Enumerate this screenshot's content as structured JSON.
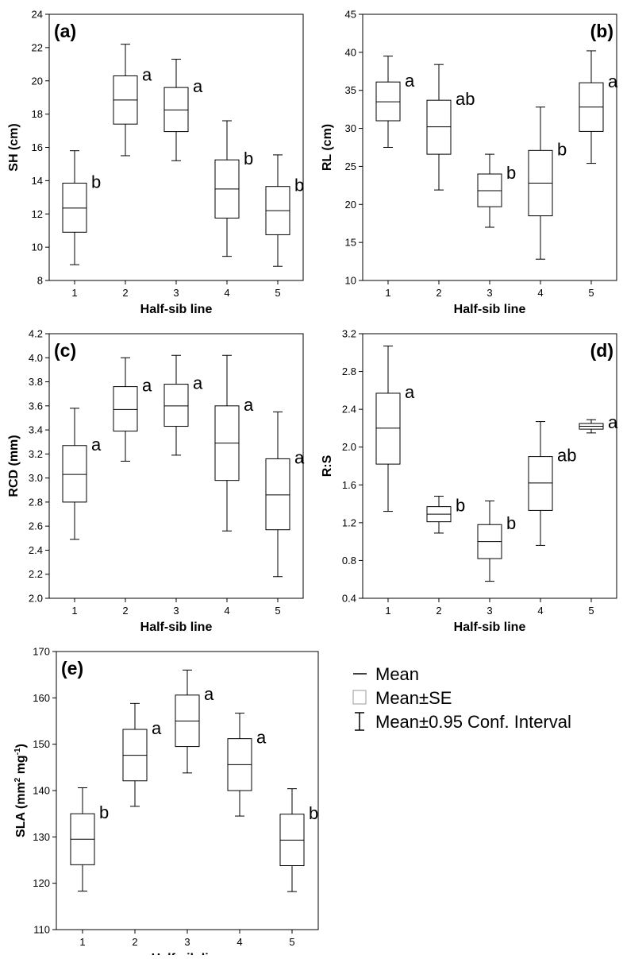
{
  "figure": {
    "legend": {
      "mean_label": "Mean",
      "se_label": "Mean±SE",
      "ci_label": "Mean±0.95 Conf. Interval"
    }
  },
  "chart_data": [
    {
      "type": "box",
      "panel_label": "(a)",
      "xlabel": "Half-sib line",
      "ylabel": "SH (cm)",
      "ylim": [
        8,
        24
      ],
      "yticks": [
        8,
        10,
        12,
        14,
        16,
        18,
        20,
        22,
        24
      ],
      "categories": [
        "1",
        "2",
        "3",
        "4",
        "5"
      ],
      "series": [
        {
          "mean": 12.35,
          "se_low": 10.9,
          "se_high": 13.85,
          "ci_low": 8.95,
          "ci_high": 15.8,
          "letter": "b"
        },
        {
          "mean": 18.85,
          "se_low": 17.4,
          "se_high": 20.3,
          "ci_low": 15.5,
          "ci_high": 22.2,
          "letter": "a"
        },
        {
          "mean": 18.25,
          "se_low": 16.95,
          "se_high": 19.6,
          "ci_low": 15.2,
          "ci_high": 21.3,
          "letter": "a"
        },
        {
          "mean": 13.5,
          "se_low": 11.75,
          "se_high": 15.25,
          "ci_low": 9.45,
          "ci_high": 17.6,
          "letter": "b"
        },
        {
          "mean": 12.2,
          "se_low": 10.75,
          "se_high": 13.65,
          "ci_low": 8.85,
          "ci_high": 15.55,
          "letter": "b"
        }
      ]
    },
    {
      "type": "box",
      "panel_label": "(b)",
      "xlabel": "Half-sib line",
      "ylabel": "RL (cm)",
      "ylim": [
        10,
        45
      ],
      "yticks": [
        10,
        15,
        20,
        25,
        30,
        35,
        40,
        45
      ],
      "categories": [
        "1",
        "2",
        "3",
        "4",
        "5"
      ],
      "series": [
        {
          "mean": 33.5,
          "se_low": 31.0,
          "se_high": 36.1,
          "ci_low": 27.5,
          "ci_high": 39.5,
          "letter": "a"
        },
        {
          "mean": 30.2,
          "se_low": 26.6,
          "se_high": 33.7,
          "ci_low": 21.9,
          "ci_high": 38.4,
          "letter": "ab"
        },
        {
          "mean": 21.8,
          "se_low": 19.7,
          "se_high": 24.0,
          "ci_low": 17.0,
          "ci_high": 26.6,
          "letter": "b"
        },
        {
          "mean": 22.8,
          "se_low": 18.5,
          "se_high": 27.1,
          "ci_low": 12.8,
          "ci_high": 32.8,
          "letter": "b"
        },
        {
          "mean": 32.8,
          "se_low": 29.6,
          "se_high": 36.0,
          "ci_low": 25.4,
          "ci_high": 40.2,
          "letter": "a"
        }
      ]
    },
    {
      "type": "box",
      "panel_label": "(c)",
      "xlabel": "Half-sib line",
      "ylabel": "RCD (mm)",
      "ylim": [
        2.0,
        4.2
      ],
      "yticks": [
        "2.0",
        "2.2",
        "2.4",
        "2.6",
        "2.8",
        "3.0",
        "3.2",
        "3.4",
        "3.6",
        "3.8",
        "4.0",
        "4.2"
      ],
      "categories": [
        "1",
        "2",
        "3",
        "4",
        "5"
      ],
      "series": [
        {
          "mean": 3.03,
          "se_low": 2.8,
          "se_high": 3.27,
          "ci_low": 2.49,
          "ci_high": 3.58,
          "letter": "a"
        },
        {
          "mean": 3.57,
          "se_low": 3.39,
          "se_high": 3.76,
          "ci_low": 3.14,
          "ci_high": 4.0,
          "letter": "a"
        },
        {
          "mean": 3.6,
          "se_low": 3.43,
          "se_high": 3.78,
          "ci_low": 3.19,
          "ci_high": 4.02,
          "letter": "a"
        },
        {
          "mean": 3.29,
          "se_low": 2.98,
          "se_high": 3.6,
          "ci_low": 2.56,
          "ci_high": 4.02,
          "letter": "a"
        },
        {
          "mean": 2.86,
          "se_low": 2.57,
          "se_high": 3.16,
          "ci_low": 2.18,
          "ci_high": 3.55,
          "letter": "a"
        }
      ]
    },
    {
      "type": "box",
      "panel_label": "(d)",
      "xlabel": "Half-sib line",
      "ylabel": "R:S",
      "ylim": [
        0.4,
        3.2
      ],
      "yticks": [
        "0.4",
        "0.8",
        "1.2",
        "1.6",
        "2.0",
        "2.4",
        "2.8",
        "3.2"
      ],
      "categories": [
        "1",
        "2",
        "3",
        "4",
        "5"
      ],
      "series": [
        {
          "mean": 2.2,
          "se_low": 1.82,
          "se_high": 2.57,
          "ci_low": 1.32,
          "ci_high": 3.07,
          "letter": "a"
        },
        {
          "mean": 1.29,
          "se_low": 1.21,
          "se_high": 1.37,
          "ci_low": 1.09,
          "ci_high": 1.48,
          "letter": "b"
        },
        {
          "mean": 1.0,
          "se_low": 0.82,
          "se_high": 1.18,
          "ci_low": 0.58,
          "ci_high": 1.43,
          "letter": "b"
        },
        {
          "mean": 1.62,
          "se_low": 1.33,
          "se_high": 1.9,
          "ci_low": 0.96,
          "ci_high": 2.27,
          "letter": "ab"
        },
        {
          "mean": 2.22,
          "se_low": 2.19,
          "se_high": 2.25,
          "ci_low": 2.15,
          "ci_high": 2.29,
          "letter": "a"
        }
      ]
    },
    {
      "type": "box",
      "panel_label": "(e)",
      "xlabel": "Half-sib line",
      "ylabel_main": "SLA (mm",
      "ylabel_sup1": "2",
      "ylabel_mid": " mg",
      "ylabel_sup2": "-1",
      "ylabel_end": ")",
      "ylim": [
        110,
        170
      ],
      "yticks": [
        110,
        120,
        130,
        140,
        150,
        160,
        170
      ],
      "categories": [
        "1",
        "2",
        "3",
        "4",
        "5"
      ],
      "series": [
        {
          "mean": 129.5,
          "se_low": 124.0,
          "se_high": 135.0,
          "ci_low": 118.3,
          "ci_high": 140.6,
          "letter": "b"
        },
        {
          "mean": 147.6,
          "se_low": 142.1,
          "se_high": 153.2,
          "ci_low": 136.6,
          "ci_high": 158.8,
          "letter": "a"
        },
        {
          "mean": 155.0,
          "se_low": 149.5,
          "se_high": 160.6,
          "ci_low": 143.8,
          "ci_high": 166.0,
          "letter": "a"
        },
        {
          "mean": 145.6,
          "se_low": 140.0,
          "se_high": 151.2,
          "ci_low": 134.5,
          "ci_high": 156.7,
          "letter": "a"
        },
        {
          "mean": 129.3,
          "se_low": 123.8,
          "se_high": 134.9,
          "ci_low": 118.2,
          "ci_high": 140.4,
          "letter": "b"
        }
      ]
    }
  ]
}
